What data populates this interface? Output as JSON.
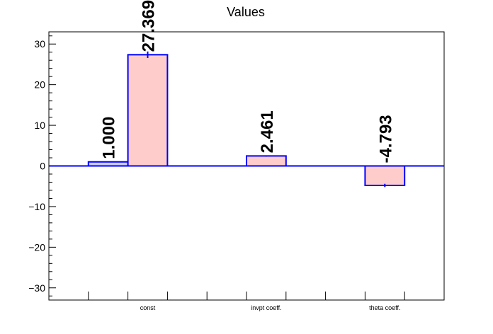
{
  "chart_data": {
    "type": "bar",
    "title": "Values",
    "xlabel": "",
    "ylabel": "",
    "ylim": [
      -33,
      33
    ],
    "yticks": [
      -30,
      -20,
      -10,
      0,
      10,
      20,
      30
    ],
    "ytick_labels": [
      "−30",
      "−20",
      "−10",
      "0",
      "10",
      "20",
      "30"
    ],
    "categories": [
      "const",
      "invpt coeff.",
      "theta coeff."
    ],
    "bars": [
      {
        "category": "const",
        "value": 1.0,
        "error": 0,
        "label": "1.000",
        "style": "secondary"
      },
      {
        "category": "const",
        "value": 27.369,
        "error": 0.8,
        "label": "27.369",
        "style": "primary"
      },
      {
        "category": "invpt coeff.",
        "value": 2.461,
        "error": 0.15,
        "label": "2.461",
        "style": "primary"
      },
      {
        "category": "theta coeff.",
        "value": -4.793,
        "error": 0.4,
        "label": "-4.793",
        "style": "primary"
      }
    ],
    "grid": false,
    "colors": {
      "bar_fill": "#ffcccc",
      "bar_secondary_fill": "#ccccff",
      "bar_stroke": "#0000ff",
      "zero_line": "#0000ff",
      "axis": "#000000"
    }
  }
}
